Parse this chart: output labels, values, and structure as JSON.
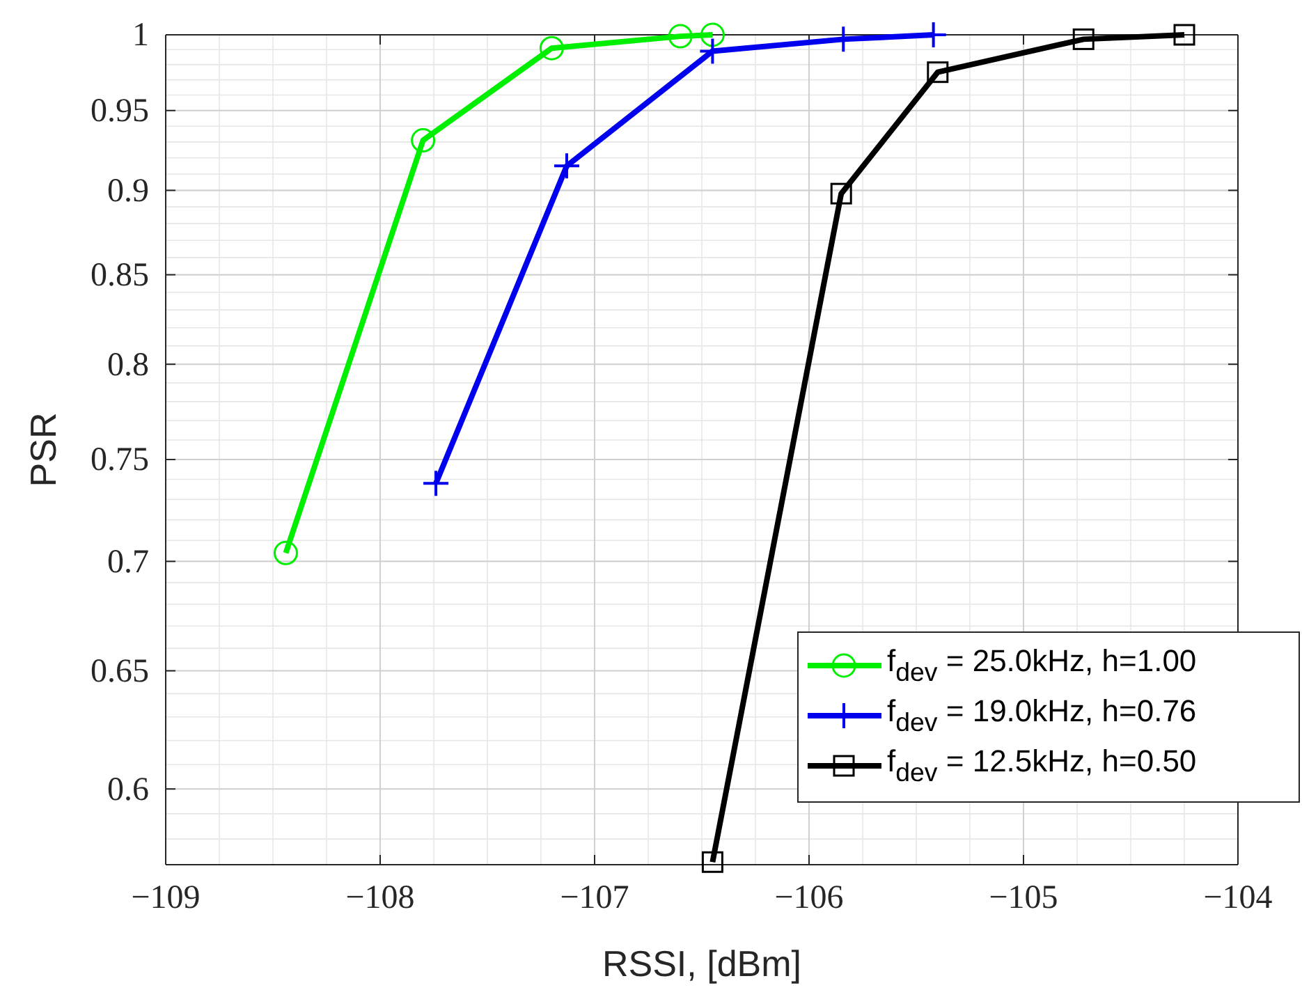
{
  "chart_data": {
    "type": "line",
    "xlabel": "RSSI, [dBm]",
    "ylabel": "PSR",
    "xlim": [
      -109,
      -104
    ],
    "xticks": [
      -109,
      -108,
      -107,
      -106,
      -105,
      -104
    ],
    "ylim": [
      0.57,
      1
    ],
    "yticks": [
      0.6,
      0.65,
      0.7,
      0.75,
      0.8,
      0.85,
      0.9,
      0.95,
      1
    ],
    "log": "y",
    "grid": true,
    "legend": "bottom right",
    "series": [
      {
        "name": "f$_{dev}$ = 25.0kHz, h=1.00",
        "color": "#00ee00",
        "marker": "circle",
        "x": [
          -108.44,
          -107.8,
          -107.2,
          -106.6,
          -106.45
        ],
        "values": [
          0.704,
          0.931,
          0.991,
          0.999,
          1.0
        ]
      },
      {
        "name": "f$_{dev}$ = 19.0kHz, h=0.76",
        "color": "#0000ee",
        "marker": "cross",
        "x": [
          -107.74,
          -107.13,
          -106.45,
          -105.84,
          -105.42
        ],
        "values": [
          0.738,
          0.915,
          0.989,
          0.997,
          1.0
        ]
      },
      {
        "name": "f$_{dev}$ = 12.5kHz, h=0.50",
        "color": "#000000",
        "marker": "square",
        "x": [
          -106.45,
          -105.85,
          -105.4,
          -104.72,
          -104.25
        ],
        "values": [
          0.571,
          0.898,
          0.975,
          0.997,
          1.0
        ]
      }
    ]
  }
}
